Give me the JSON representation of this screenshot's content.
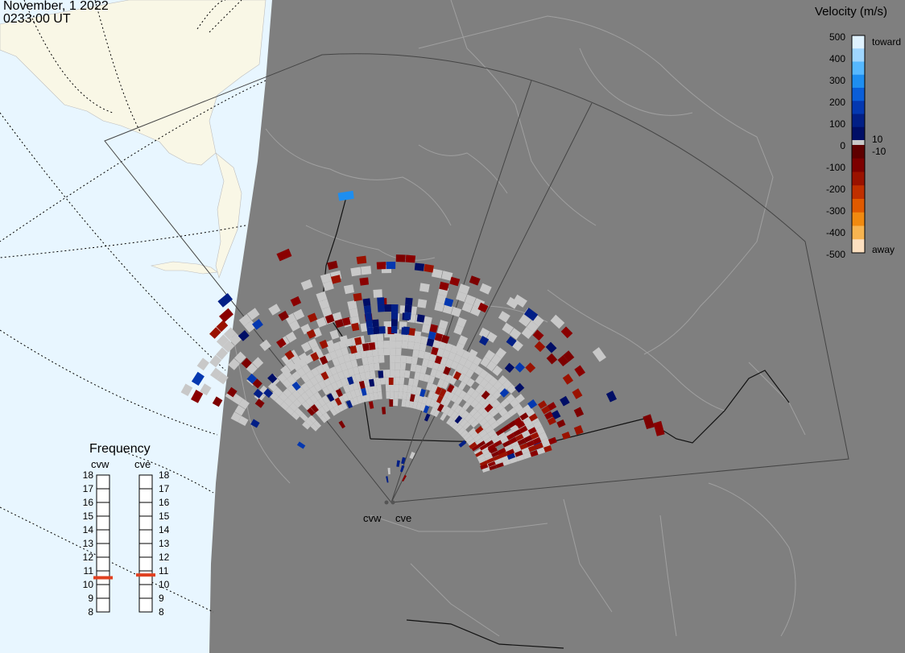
{
  "header": {
    "date": "November, 1 2022",
    "time": "0233:00 UT"
  },
  "velocity_scale": {
    "title": "Velocity (m/s)",
    "ticks": [
      "500",
      "400",
      "300",
      "200",
      "100",
      "0",
      "-100",
      "-200",
      "-300",
      "-400",
      "-500"
    ],
    "labels": {
      "toward": "toward",
      "away": "away",
      "pos10": "10",
      "neg10": "-10"
    },
    "colors": {
      "toward": [
        "#dff2ff",
        "#9fd6ff",
        "#56b8ff",
        "#1e8ef0",
        "#0a5ed8",
        "#0438b0",
        "#021f86",
        "#000e66"
      ],
      "away": [
        "#5e0000",
        "#7d0000",
        "#9a1200",
        "#c03000",
        "#e05a00",
        "#f08a10",
        "#f7b450",
        "#fde0c0"
      ]
    }
  },
  "frequency": {
    "title": "Frequency",
    "radars": [
      {
        "name": "cvw",
        "value_mhz": 10.5
      },
      {
        "name": "cve",
        "value_mhz": 10.7
      }
    ],
    "ticks": [
      "18",
      "17",
      "16",
      "15",
      "14",
      "13",
      "12",
      "11",
      "10",
      "9",
      "8"
    ]
  },
  "sites": [
    "cvw",
    "cve"
  ],
  "colors": {
    "ocean": "#e8f6ff",
    "ice": "#f9f7e6",
    "night": "#7f7f7f",
    "coast": "#a9a9a9",
    "ground_scatter": "#c8c8c8",
    "freq_marker": "#e04020"
  }
}
